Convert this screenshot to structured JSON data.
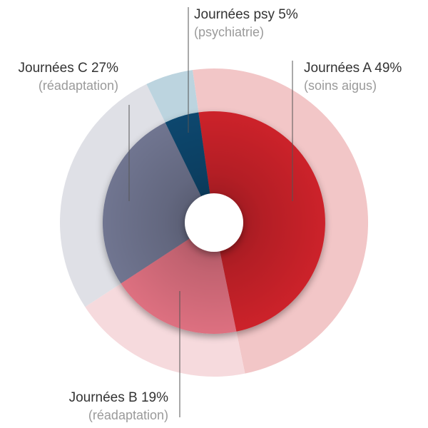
{
  "chart_data": {
    "type": "pie",
    "slices": [
      {
        "name": "Journées A",
        "value": 49,
        "label": "Journées A 49%",
        "sublabel": "(soins aigus)",
        "color": "#cc2229",
        "halo_color": "#f2c6c7"
      },
      {
        "name": "Journées B",
        "value": 19,
        "label": "Journées B 19%",
        "sublabel": "(réadaptation)",
        "color": "#dd7080",
        "halo_color": "#f6dadd"
      },
      {
        "name": "Journées C",
        "value": 27,
        "label": "Journées C 27%",
        "sublabel": "(réadaptation)",
        "color": "#6f7490",
        "halo_color": "#dfe0e6"
      },
      {
        "name": "Journées psy",
        "value": 5,
        "label": "Journées psy 5%",
        "sublabel": "(psychiatrie)",
        "color": "#08476e",
        "halo_color": "#bcd4df"
      }
    ],
    "center_hole_color": "#ffffff"
  }
}
